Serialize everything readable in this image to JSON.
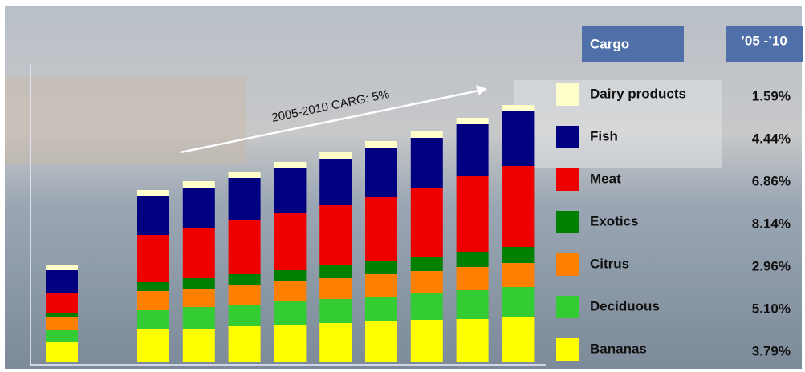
{
  "chart_data": {
    "type": "stacked_bar",
    "annotation": "2005-2010 CARG: 5%",
    "legend_header": "Cargo",
    "growth_header": "’05 -’10",
    "categories": [
      null,
      null,
      null,
      null,
      null,
      null,
      null,
      null,
      null,
      null
    ],
    "ylim": [
      0,
      330
    ],
    "series": [
      {
        "name": "Bananas",
        "color": "#ffff00",
        "growth": "3.79%",
        "values": [
          26,
          42,
          42,
          45,
          47,
          49,
          51,
          53,
          54,
          57
        ]
      },
      {
        "name": "Deciduous",
        "color": "#33cc33",
        "growth": "5.10%",
        "values": [
          15,
          23,
          27,
          27,
          29,
          30,
          31,
          33,
          36,
          37
        ]
      },
      {
        "name": "Citrus",
        "color": "#ff7f00",
        "growth": "2.96%",
        "values": [
          15,
          24,
          23,
          25,
          25,
          26,
          28,
          28,
          29,
          30
        ]
      },
      {
        "name": "Exotics",
        "color": "#008000",
        "growth": "8.14%",
        "values": [
          5,
          11,
          13,
          13,
          14,
          16,
          17,
          18,
          19,
          20
        ]
      },
      {
        "name": "Meat",
        "color": "#ee0000",
        "growth": "6.86%",
        "values": [
          26,
          59,
          63,
          67,
          71,
          75,
          79,
          86,
          94,
          101
        ]
      },
      {
        "name": "Fish",
        "color": "#000080",
        "growth": "4.44%",
        "values": [
          28,
          48,
          50,
          53,
          56,
          58,
          61,
          62,
          65,
          68
        ]
      },
      {
        "name": "Dairy products",
        "color": "#ffffcc",
        "growth": "1.59%",
        "values": [
          7,
          8,
          8,
          8,
          8,
          8,
          9,
          9,
          8,
          8
        ]
      }
    ]
  }
}
